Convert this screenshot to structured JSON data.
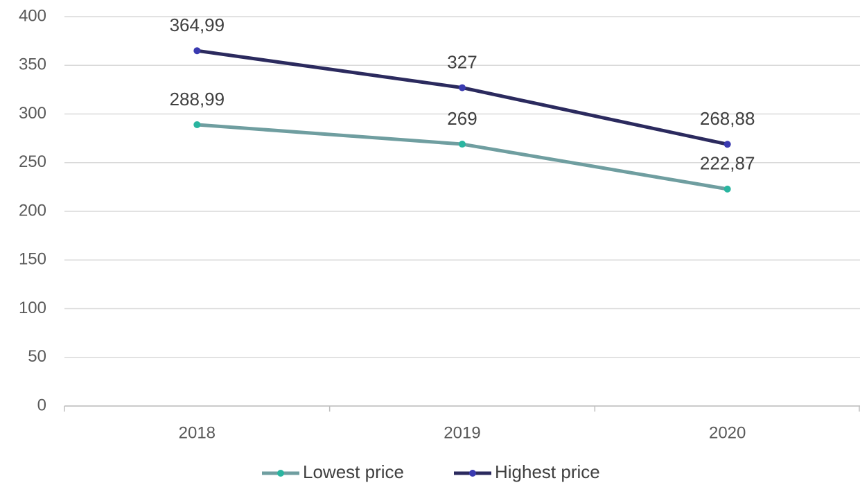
{
  "chart_data": {
    "type": "line",
    "categories": [
      "2018",
      "2019",
      "2020"
    ],
    "series": [
      {
        "name": "Lowest price",
        "color": "#6f9ea0",
        "marker_color": "#2ab5a0",
        "values": [
          288.99,
          269,
          222.87
        ],
        "value_labels": [
          "288,99",
          "269",
          "222,87"
        ]
      },
      {
        "name": "Highest price",
        "color": "#2b2a5e",
        "marker_color": "#3a3ab0",
        "values": [
          364.99,
          327,
          268.88
        ],
        "value_labels": [
          "364,99",
          "327",
          "268,88"
        ]
      }
    ],
    "ylim": [
      0,
      400
    ],
    "yticks": [
      0,
      50,
      100,
      150,
      200,
      250,
      300,
      350,
      400
    ],
    "grid": true,
    "legend": "bottom"
  }
}
